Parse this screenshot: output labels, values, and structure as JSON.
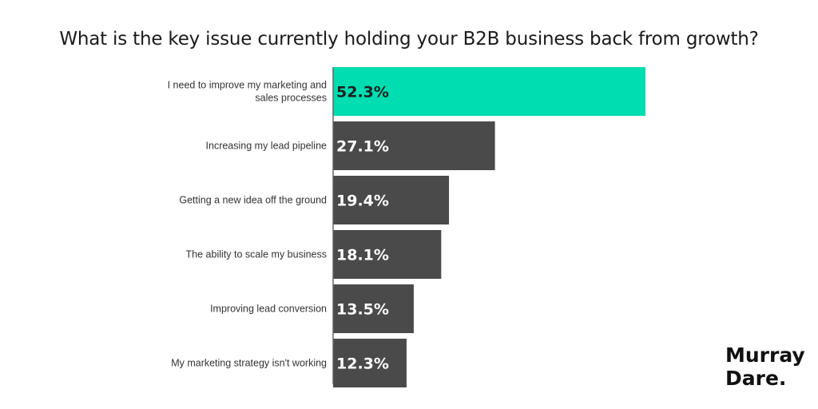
{
  "chart_data": {
    "type": "bar",
    "orientation": "horizontal",
    "title": "What is the key issue currently holding your B2B business back from growth?",
    "categories": [
      "I need to improve my marketing and sales processes",
      "Increasing my lead pipeline",
      "Getting a new idea off the ground",
      "The ability to scale my business",
      "Improving lead conversion",
      "My marketing strategy isn't working"
    ],
    "category_lines": [
      [
        "I need to improve my marketing and",
        "sales processes"
      ],
      [
        "Increasing my lead pipeline"
      ],
      [
        "Getting a new idea off the ground"
      ],
      [
        "The ability to scale my business"
      ],
      [
        "Improving lead conversion"
      ],
      [
        "My marketing strategy isn't working"
      ]
    ],
    "values": [
      52.3,
      27.1,
      19.4,
      18.1,
      13.5,
      12.3
    ],
    "value_labels": [
      "52.3%",
      "27.1%",
      "19.4%",
      "18.1%",
      "13.5%",
      "12.3%"
    ],
    "xlim": [
      0,
      100
    ],
    "grid": false,
    "colors": {
      "highlight": "#00DDB0",
      "bar": "#4A4A4A",
      "axis": "#666666"
    }
  },
  "brand": {
    "line1": "Murray",
    "line2": "Dare."
  }
}
